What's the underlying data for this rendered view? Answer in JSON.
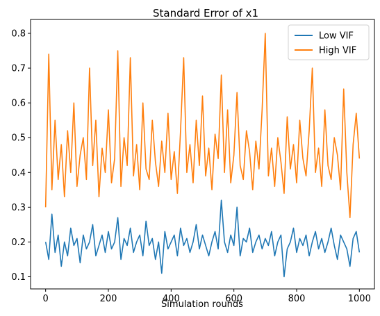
{
  "chart_data": {
    "type": "line",
    "title": "Standard Error of x1",
    "xlabel": "Simulation rounds",
    "ylabel": "",
    "xlim": [
      -48,
      1048
    ],
    "ylim": [
      0.065,
      0.84
    ],
    "xticks": [
      0,
      200,
      400,
      600,
      800,
      1000
    ],
    "yticks": [
      0.1,
      0.2,
      0.3,
      0.4,
      0.5,
      0.6,
      0.7,
      0.8
    ],
    "xtick_labels": [
      "0",
      "200",
      "400",
      "600",
      "800",
      "1000"
    ],
    "ytick_labels": [
      "0.1",
      "0.2",
      "0.3",
      "0.4",
      "0.5",
      "0.6",
      "0.7",
      "0.8"
    ],
    "grid": false,
    "legend_position": "top-right",
    "series": [
      {
        "name": "Low VIF",
        "color": "#1f77b4",
        "x": [
          0,
          10,
          20,
          30,
          40,
          50,
          60,
          70,
          80,
          90,
          100,
          110,
          120,
          130,
          140,
          150,
          160,
          170,
          180,
          190,
          200,
          210,
          220,
          230,
          240,
          250,
          260,
          270,
          280,
          290,
          300,
          310,
          320,
          330,
          340,
          350,
          360,
          370,
          380,
          390,
          400,
          410,
          420,
          430,
          440,
          450,
          460,
          470,
          480,
          490,
          500,
          510,
          520,
          530,
          540,
          550,
          560,
          570,
          580,
          590,
          600,
          610,
          620,
          630,
          640,
          650,
          660,
          670,
          680,
          690,
          700,
          710,
          720,
          730,
          740,
          750,
          760,
          770,
          780,
          790,
          800,
          810,
          820,
          830,
          840,
          850,
          860,
          870,
          880,
          890,
          900,
          910,
          920,
          930,
          940,
          950,
          960,
          970,
          980,
          990,
          1000
        ],
        "y": [
          0.2,
          0.15,
          0.28,
          0.17,
          0.22,
          0.13,
          0.2,
          0.16,
          0.24,
          0.19,
          0.21,
          0.14,
          0.22,
          0.18,
          0.2,
          0.25,
          0.16,
          0.19,
          0.22,
          0.17,
          0.23,
          0.18,
          0.2,
          0.27,
          0.15,
          0.21,
          0.19,
          0.24,
          0.17,
          0.2,
          0.22,
          0.16,
          0.26,
          0.19,
          0.21,
          0.15,
          0.2,
          0.11,
          0.23,
          0.18,
          0.2,
          0.22,
          0.16,
          0.24,
          0.19,
          0.21,
          0.17,
          0.2,
          0.25,
          0.18,
          0.22,
          0.19,
          0.16,
          0.2,
          0.23,
          0.18,
          0.32,
          0.2,
          0.17,
          0.22,
          0.19,
          0.3,
          0.16,
          0.21,
          0.2,
          0.24,
          0.17,
          0.2,
          0.22,
          0.18,
          0.21,
          0.19,
          0.23,
          0.16,
          0.2,
          0.22,
          0.1,
          0.18,
          0.2,
          0.24,
          0.17,
          0.21,
          0.19,
          0.22,
          0.16,
          0.2,
          0.23,
          0.18,
          0.21,
          0.17,
          0.2,
          0.24,
          0.19,
          0.15,
          0.22,
          0.2,
          0.18,
          0.13,
          0.21,
          0.23,
          0.17
        ]
      },
      {
        "name": "High VIF",
        "color": "#ff7f0e",
        "x": [
          0,
          10,
          20,
          30,
          40,
          50,
          60,
          70,
          80,
          90,
          100,
          110,
          120,
          130,
          140,
          150,
          160,
          170,
          180,
          190,
          200,
          210,
          220,
          230,
          240,
          250,
          260,
          270,
          280,
          290,
          300,
          310,
          320,
          330,
          340,
          350,
          360,
          370,
          380,
          390,
          400,
          410,
          420,
          430,
          440,
          450,
          460,
          470,
          480,
          490,
          500,
          510,
          520,
          530,
          540,
          550,
          560,
          570,
          580,
          590,
          600,
          610,
          620,
          630,
          640,
          650,
          660,
          670,
          680,
          690,
          700,
          710,
          720,
          730,
          740,
          750,
          760,
          770,
          780,
          790,
          800,
          810,
          820,
          830,
          840,
          850,
          860,
          870,
          880,
          890,
          900,
          910,
          920,
          930,
          940,
          950,
          960,
          970,
          980,
          990,
          1000
        ],
        "y": [
          0.3,
          0.74,
          0.35,
          0.55,
          0.38,
          0.48,
          0.33,
          0.52,
          0.4,
          0.6,
          0.36,
          0.45,
          0.5,
          0.38,
          0.7,
          0.42,
          0.55,
          0.33,
          0.47,
          0.4,
          0.58,
          0.37,
          0.44,
          0.75,
          0.36,
          0.5,
          0.42,
          0.73,
          0.39,
          0.48,
          0.35,
          0.6,
          0.41,
          0.38,
          0.55,
          0.43,
          0.36,
          0.49,
          0.4,
          0.57,
          0.38,
          0.46,
          0.34,
          0.52,
          0.73,
          0.4,
          0.48,
          0.37,
          0.55,
          0.42,
          0.62,
          0.39,
          0.47,
          0.35,
          0.51,
          0.44,
          0.68,
          0.4,
          0.58,
          0.37,
          0.45,
          0.63,
          0.42,
          0.38,
          0.52,
          0.46,
          0.35,
          0.49,
          0.41,
          0.58,
          0.8,
          0.39,
          0.47,
          0.36,
          0.5,
          0.43,
          0.34,
          0.56,
          0.41,
          0.48,
          0.37,
          0.55,
          0.44,
          0.39,
          0.52,
          0.7,
          0.4,
          0.47,
          0.36,
          0.58,
          0.42,
          0.38,
          0.5,
          0.45,
          0.35,
          0.64,
          0.4,
          0.27,
          0.48,
          0.57,
          0.44
        ]
      }
    ]
  }
}
